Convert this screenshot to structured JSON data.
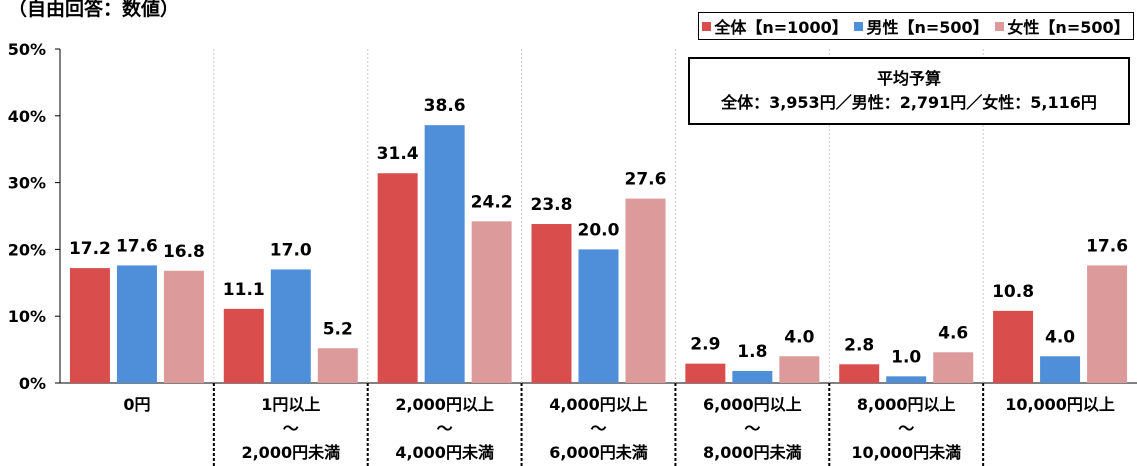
{
  "note": "（自由回答：数値）",
  "avg_box": {
    "title": "平均予算",
    "text": "全体：3,953円／男性：2,791円／女性：5,116円"
  },
  "colors": {
    "total": "#d94d4d",
    "male": "#4f8ed8",
    "female": "#dd9a9a"
  },
  "chart_data": {
    "type": "bar",
    "categories": [
      [
        "0円"
      ],
      [
        "1円以上",
        "～",
        "2,000円未満"
      ],
      [
        "2,000円以上",
        "～",
        "4,000円未満"
      ],
      [
        "4,000円以上",
        "～",
        "6,000円未満"
      ],
      [
        "6,000円以上",
        "～",
        "8,000円未満"
      ],
      [
        "8,000円以上",
        "～",
        "10,000円未満"
      ],
      [
        "10,000円以上"
      ]
    ],
    "series": [
      {
        "name": "全体【n=1000】",
        "values": [
          17.2,
          11.1,
          31.4,
          23.8,
          2.9,
          2.8,
          10.8
        ]
      },
      {
        "name": "男性【n=500】",
        "values": [
          17.6,
          17.0,
          38.6,
          20.0,
          1.8,
          1.0,
          4.0
        ]
      },
      {
        "name": "女性【n=500】",
        "values": [
          16.8,
          5.2,
          24.2,
          27.6,
          4.0,
          4.6,
          17.6
        ]
      }
    ],
    "yticks": [
      "0%",
      "10%",
      "20%",
      "30%",
      "40%",
      "50%"
    ],
    "ylim": [
      0,
      50
    ],
    "legend_position": "top-right",
    "grid": false
  }
}
